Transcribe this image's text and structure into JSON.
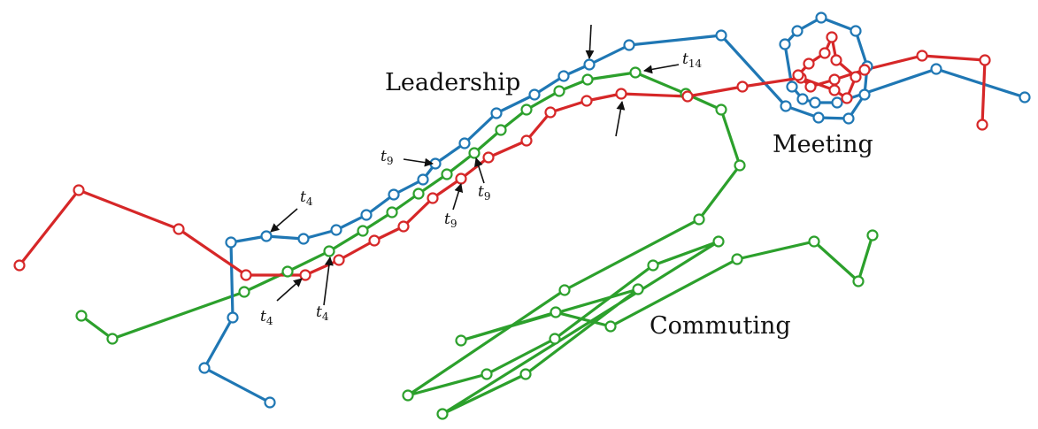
{
  "labels": {
    "leadership": "Leadership",
    "meeting": "Meeting",
    "commuting": "Commuting"
  },
  "time_marks": [
    {
      "base": "t",
      "sub": "4"
    },
    {
      "base": "t",
      "sub": "4"
    },
    {
      "base": "t",
      "sub": "4"
    },
    {
      "base": "t",
      "sub": "9"
    },
    {
      "base": "t",
      "sub": "9"
    },
    {
      "base": "t",
      "sub": "9"
    },
    {
      "base": "t",
      "sub": "14"
    }
  ],
  "colors": {
    "red": "#d62728",
    "blue": "#1f77b4",
    "green": "#2ca02c",
    "text": "#111111"
  }
}
